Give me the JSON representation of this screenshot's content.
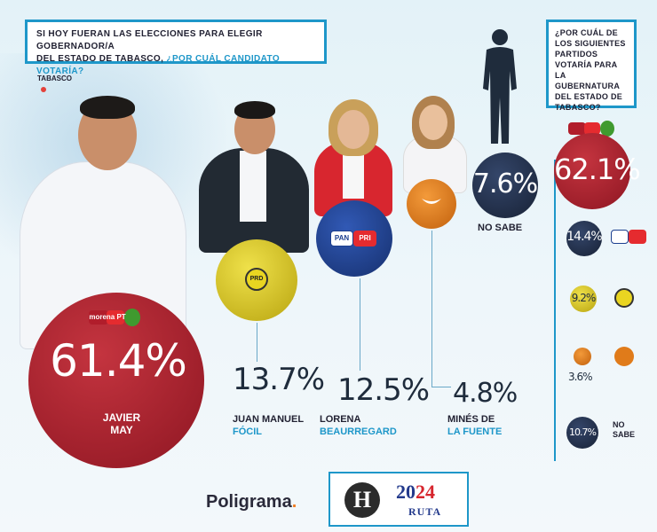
{
  "question": {
    "line1": "SI HOY FUERAN LAS ELECCIONES PARA ELEGIR GOBERNADOR/A",
    "line2a": "DEL ESTADO DE TABASCO, ",
    "line2b": "¿POR CUÁL CANDIDATO VOTARÍA?"
  },
  "region": "TABASCO",
  "question_parties": "¿POR CUÁL DE LOS SIGUIENTES PARTIDOS VOTARÍA PARA LA GUBERNATURA DEL ESTADO DE TABASCO?",
  "colors": {
    "accent": "#1e97c9",
    "morena": "#a61d2a",
    "pan_pri": "#1c3f8f",
    "mc": "#e07b1a",
    "prd": "#d9c21e",
    "no_sabe": "#22324d"
  },
  "logos": {
    "coalition": "morena PT",
    "pan": "PAN",
    "pri": "PRI",
    "prd": "PRD"
  },
  "chart_data": [
    {
      "type": "bar",
      "categories": [
        "JAVIER MAY",
        "JUAN MANUEL FÓCIL",
        "LORENA BEAURREGARD",
        "MINÉS DE LA FUENTE",
        "NO SABE"
      ],
      "values": [
        61.4,
        13.7,
        12.5,
        4.8,
        7.6
      ],
      "labels": [
        "61.4%",
        "13.7%",
        "12.5%",
        "4.8%",
        "7.6%"
      ],
      "title": "SI HOY FUERAN LAS ELECCIONES PARA ELEGIR GOBERNADOR/A DEL ESTADO DE TABASCO, ¿POR CUÁL CANDIDATO VOTARÍA?"
    },
    {
      "type": "bar",
      "categories": [
        "morena PT",
        "PAN PRI",
        "PRD",
        "MC",
        "NO SABE"
      ],
      "values": [
        62.1,
        14.4,
        9.2,
        3.6,
        10.7
      ],
      "labels": [
        "62.1%",
        "14.4%",
        "9.2%",
        "3.6%",
        "10.7%"
      ],
      "title": "¿POR CUÁL DE LOS SIGUIENTES PARTIDOS VOTARÍA PARA LA GUBERNATURA DEL ESTADO DE TABASCO?"
    }
  ],
  "candidates": {
    "may": {
      "first": "JAVIER",
      "last": "MAY"
    },
    "focil": {
      "first": "JUAN MANUEL",
      "last": "FÓCIL"
    },
    "lorena": {
      "first": "LORENA",
      "last": "BEAURREGARD"
    },
    "mines": {
      "first": "MINÉS DE",
      "last": "LA FUENTE"
    },
    "nosabe": "NO SABE"
  },
  "party_no_sabe_line1": "NO",
  "party_no_sabe_line2": "SABE",
  "footer": {
    "brand": "Poligrama",
    "brand_dot": ".",
    "h_logo": "H",
    "year_a": "20",
    "year_b": "24",
    "ruta": "RUTA"
  }
}
